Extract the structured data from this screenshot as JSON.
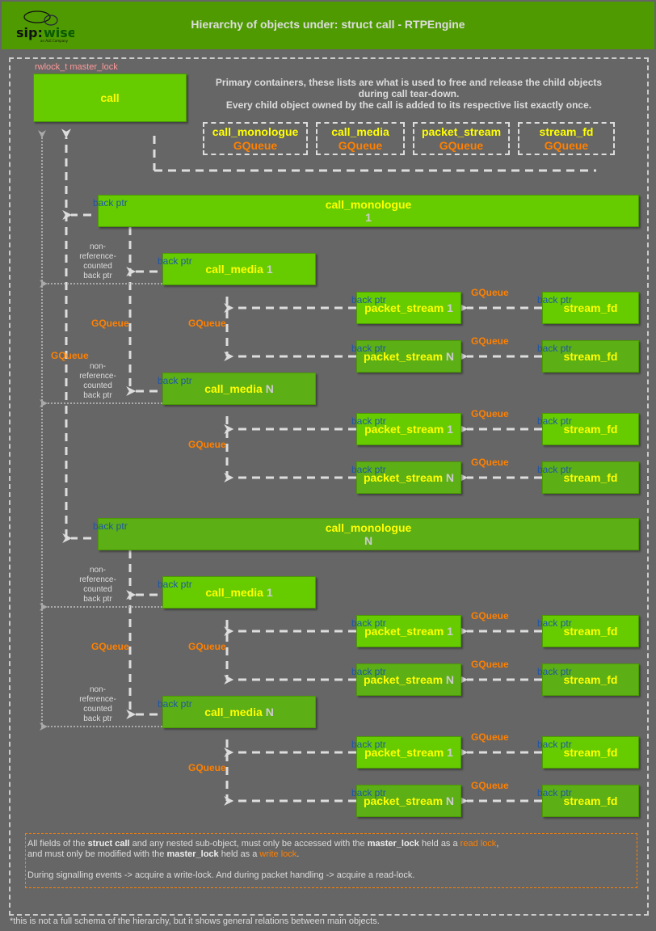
{
  "header": {
    "title": "Hierarchy of objects under: struct call - RTPEngine",
    "logo_text": "sip:wise",
    "logo_subtext": "an ALE Company"
  },
  "call": {
    "label": "call",
    "lock_label": "rwlock_t master_lock"
  },
  "primary_note": {
    "line1": "Primary containers, these lists are what is used to free and release the child objects",
    "line2": "during call tear-down.",
    "line3": "Every child object owned by the call is added to its respective list exactly once."
  },
  "containers": [
    {
      "label": "call_monologue",
      "type": "GQueue"
    },
    {
      "label": "call_media",
      "type": "GQueue"
    },
    {
      "label": "packet_stream",
      "type": "GQueue"
    },
    {
      "label": "stream_fd",
      "type": "GQueue"
    }
  ],
  "labels": {
    "back_ptr": "back ptr",
    "gqueue": "GQueue",
    "non_ref": [
      "non-",
      "reference-",
      "counted",
      "back ptr"
    ]
  },
  "hierarchy": [
    {
      "label": "call_monologue",
      "index": "1",
      "medias": [
        {
          "label": "call_media",
          "index": "1",
          "streams": [
            {
              "label": "packet_stream",
              "index": "1",
              "fd": "stream_fd"
            },
            {
              "label": "packet_stream",
              "index": "N",
              "fd": "stream_fd"
            }
          ]
        },
        {
          "label": "call_media",
          "index": "N",
          "streams": [
            {
              "label": "packet_stream",
              "index": "1",
              "fd": "stream_fd"
            },
            {
              "label": "packet_stream",
              "index": "N",
              "fd": "stream_fd"
            }
          ]
        }
      ]
    },
    {
      "label": "call_monologue",
      "index": "N",
      "medias": [
        {
          "label": "call_media",
          "index": "1",
          "streams": [
            {
              "label": "packet_stream",
              "index": "1",
              "fd": "stream_fd"
            },
            {
              "label": "packet_stream",
              "index": "N",
              "fd": "stream_fd"
            }
          ]
        },
        {
          "label": "call_media",
          "index": "N",
          "streams": [
            {
              "label": "packet_stream",
              "index": "1",
              "fd": "stream_fd"
            },
            {
              "label": "packet_stream",
              "index": "N",
              "fd": "stream_fd"
            }
          ]
        }
      ]
    }
  ],
  "note": {
    "p1_a": "All fields of the ",
    "p1_b": "struct call",
    "p1_c": " and any nested sub-object, must only be accessed with the ",
    "p1_d": "master_lock",
    "p1_e": " held as a ",
    "p1_f": "read lock",
    "p1_g": ",",
    "p2_a": "and must only be modified with the ",
    "p2_b": "master_lock",
    "p2_c": " held as a ",
    "p2_d": "write lock",
    "p2_e": ".",
    "p3": "During signalling events -> acquire a write-lock. And during packet handling -> acquire a read-lock."
  },
  "footer": "*this is not a full schema of the hierarchy, but it shows general relations between main objects.",
  "colors": {
    "header": "#4e9a00",
    "box_light": "#66cc00",
    "box_dark": "#5daf16",
    "label_text": "#ffff00",
    "gqueue": "#ff8000",
    "back_ptr": "#1d56a6",
    "lock": "#ff9999"
  }
}
